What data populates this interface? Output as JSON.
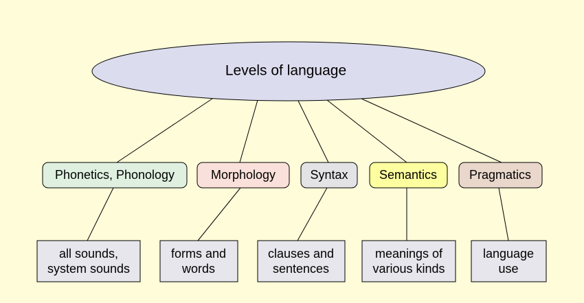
{
  "root": {
    "label": "Levels of language",
    "color": "#dcdcef"
  },
  "levels": [
    {
      "label": "Phonetics, Phonology",
      "color": "#dff0e1",
      "description": [
        "all sounds,",
        "system sounds"
      ]
    },
    {
      "label": "Morphology",
      "color": "#fae0da",
      "description": [
        "forms and",
        "words"
      ]
    },
    {
      "label": "Syntax",
      "color": "#e3e3e6",
      "description": [
        "clauses and",
        "sentences"
      ]
    },
    {
      "label": "Semantics",
      "color": "#fdfe9f",
      "description": [
        "meanings of",
        "various kinds"
      ]
    },
    {
      "label": "Pragmatics",
      "color": "#ead7cc",
      "description": [
        "language",
        "use"
      ]
    }
  ],
  "colors": {
    "background": "#fefcd9",
    "description_box": "#e6e6ec",
    "line": "#000000"
  }
}
